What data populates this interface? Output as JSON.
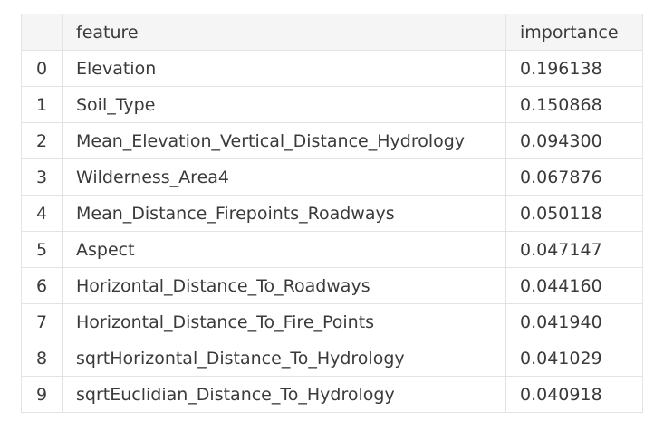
{
  "table": {
    "columns": {
      "index": "",
      "feature": "feature",
      "importance": "importance"
    },
    "rows": [
      {
        "index": "0",
        "feature": "Elevation",
        "importance": "0.196138"
      },
      {
        "index": "1",
        "feature": "Soil_Type",
        "importance": "0.150868"
      },
      {
        "index": "2",
        "feature": "Mean_Elevation_Vertical_Distance_Hydrology",
        "importance": "0.094300"
      },
      {
        "index": "3",
        "feature": "Wilderness_Area4",
        "importance": "0.067876"
      },
      {
        "index": "4",
        "feature": "Mean_Distance_Firepoints_Roadways",
        "importance": "0.050118"
      },
      {
        "index": "5",
        "feature": "Aspect",
        "importance": "0.047147"
      },
      {
        "index": "6",
        "feature": "Horizontal_Distance_To_Roadways",
        "importance": "0.044160"
      },
      {
        "index": "7",
        "feature": "Horizontal_Distance_To_Fire_Points",
        "importance": "0.041940"
      },
      {
        "index": "8",
        "feature": "sqrtHorizontal_Distance_To_Hydrology",
        "importance": "0.041029"
      },
      {
        "index": "9",
        "feature": "sqrtEuclidian_Distance_To_Hydrology",
        "importance": "0.040918"
      }
    ]
  }
}
